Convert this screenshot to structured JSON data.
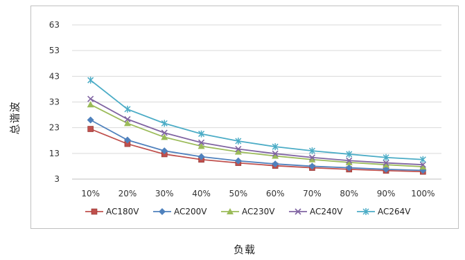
{
  "chart_data": {
    "type": "line",
    "xlabel": "负载",
    "ylabel": "总谐波",
    "categories": [
      "10%",
      "20%",
      "30%",
      "40%",
      "50%",
      "60%",
      "70%",
      "80%",
      "90%",
      "100%"
    ],
    "yticks": [
      3,
      13,
      23,
      33,
      43,
      53,
      63
    ],
    "ylim": [
      3,
      63
    ],
    "grid": true,
    "legend_position": "bottom",
    "series": [
      {
        "name": "AC180V",
        "color": "#c0504d",
        "marker": "square",
        "values": [
          22.5,
          16.7,
          12.7,
          10.6,
          9.3,
          8.2,
          7.4,
          6.8,
          6.3,
          5.9
        ]
      },
      {
        "name": "AC200V",
        "color": "#4f81bd",
        "marker": "diamond",
        "values": [
          26.0,
          18.2,
          14.0,
          11.7,
          10.1,
          8.9,
          8.0,
          7.4,
          6.8,
          6.4
        ]
      },
      {
        "name": "AC230V",
        "color": "#9bbb59",
        "marker": "triangle",
        "values": [
          32.0,
          24.7,
          19.3,
          15.8,
          13.6,
          12.0,
          10.6,
          9.5,
          8.6,
          7.8
        ]
      },
      {
        "name": "AC240V",
        "color": "#8064a2",
        "marker": "x",
        "values": [
          34.2,
          26.3,
          21.0,
          17.2,
          14.7,
          12.9,
          11.4,
          10.2,
          9.3,
          8.6
        ]
      },
      {
        "name": "AC264V",
        "color": "#4bacc6",
        "marker": "star",
        "values": [
          41.5,
          30.2,
          24.7,
          20.6,
          17.8,
          15.6,
          14.0,
          12.7,
          11.4,
          10.6
        ]
      }
    ]
  }
}
